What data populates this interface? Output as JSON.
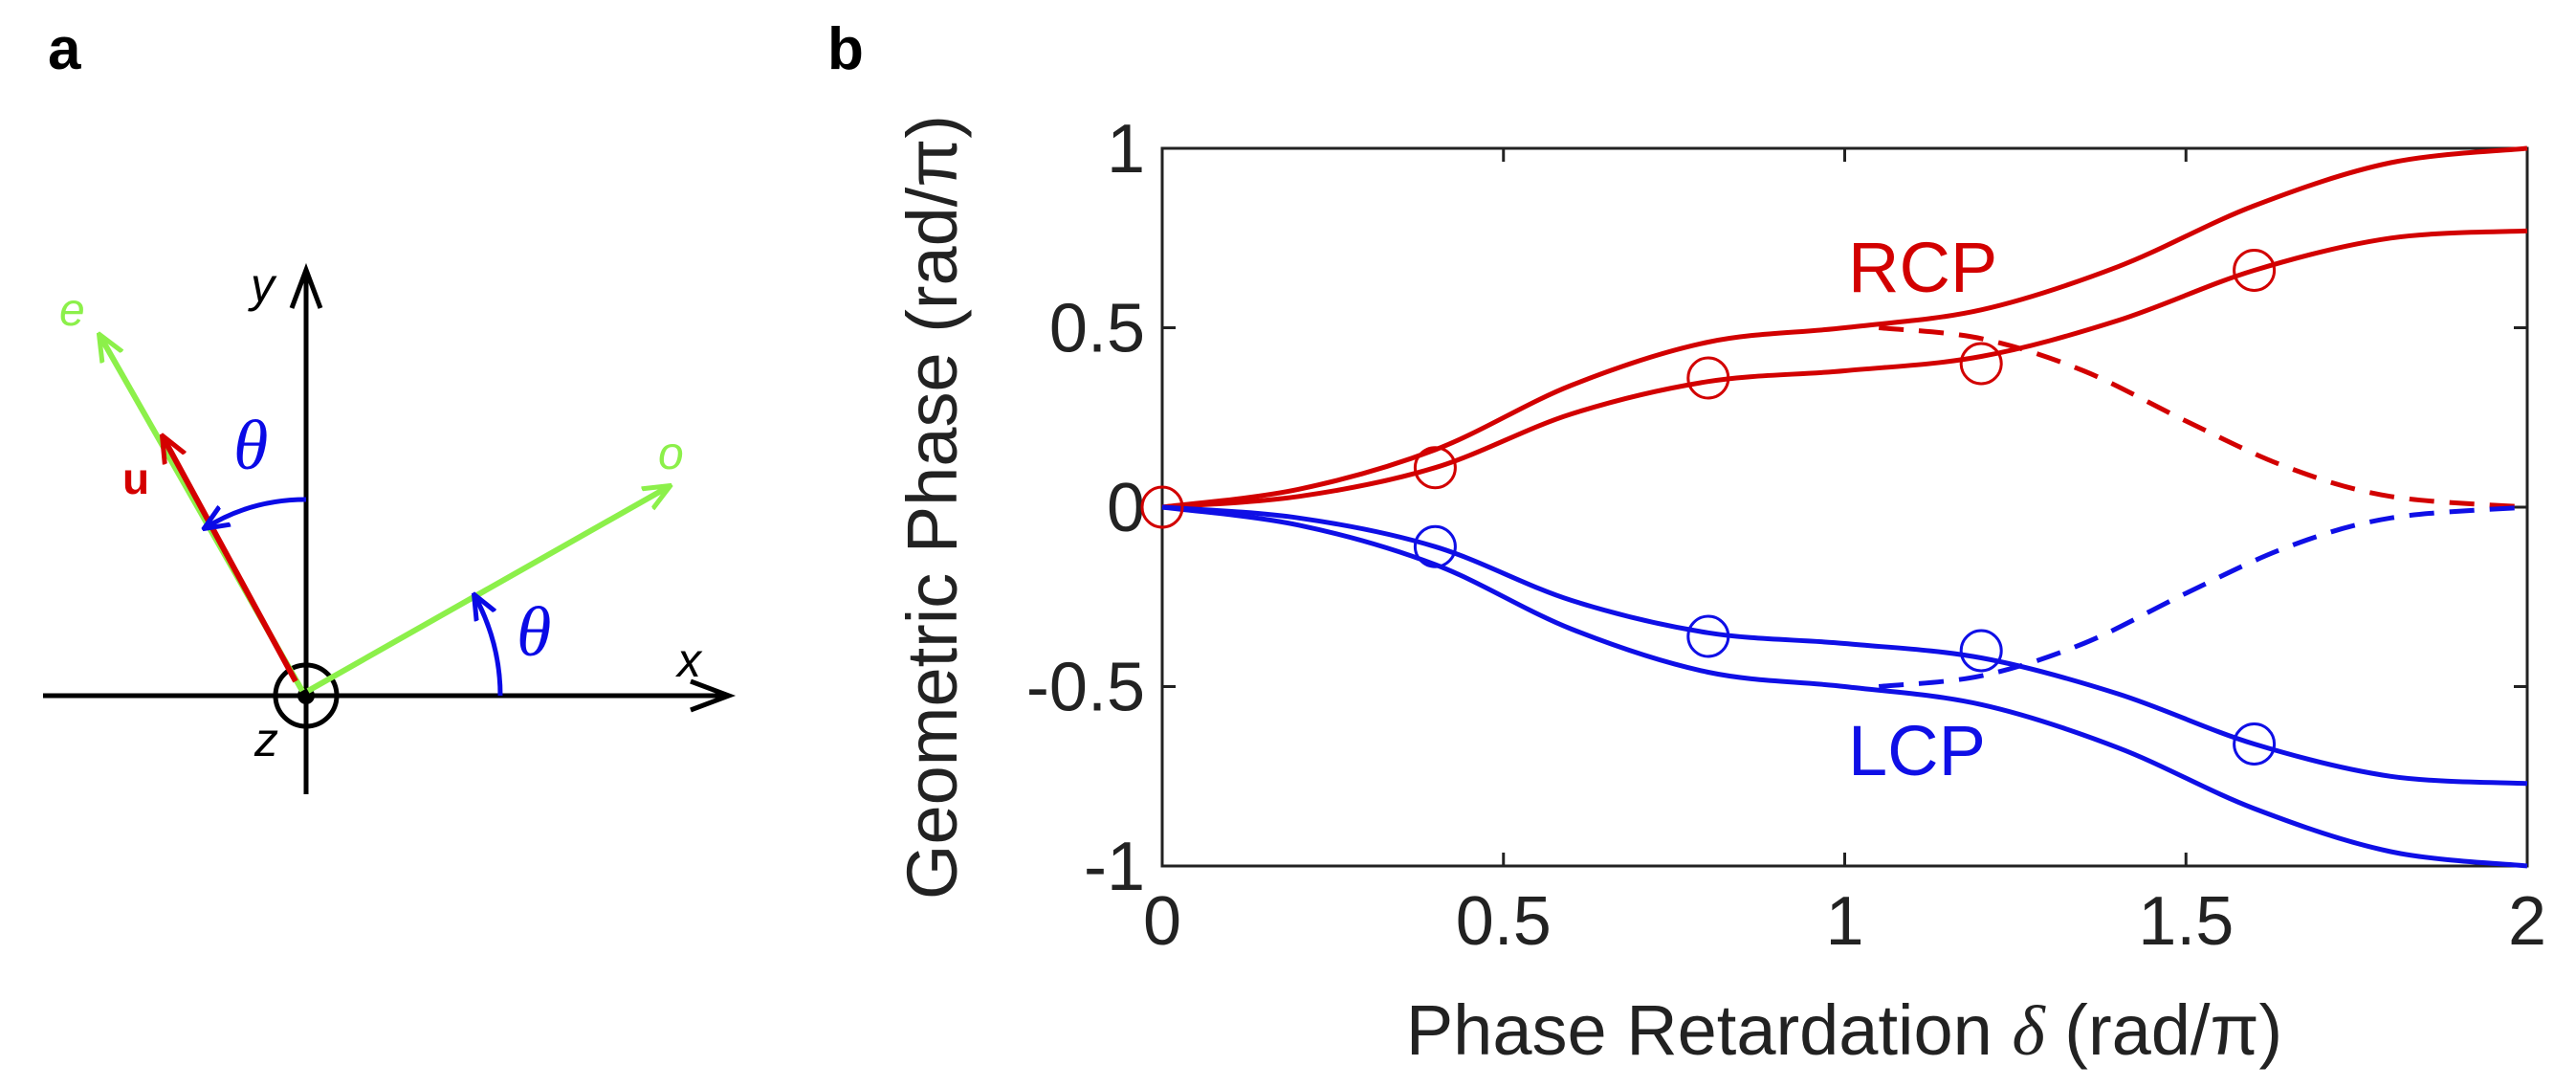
{
  "panel_a": {
    "label": "a",
    "axis_x": "x",
    "axis_y": "y",
    "axis_z": "z",
    "vec_e": "e",
    "vec_o": "o",
    "vec_u": "u",
    "angle_top": "θ",
    "angle_right": "θ",
    "colors": {
      "green": "#8cf04a",
      "red": "#d40000",
      "blue": "#0a0ae6",
      "black": "#000000"
    }
  },
  "panel_b": {
    "label": "b",
    "annotation_rcp": "RCP",
    "annotation_lcp": "LCP"
  },
  "chart_data": {
    "type": "line",
    "ylabel": "Geometric Phase (rad/π)",
    "xlabel_prefix": "Phase Retardation ",
    "xlabel_symbol": "δ",
    "xlabel_suffix": " (rad/π)",
    "xlim": [
      0,
      2
    ],
    "ylim": [
      -1,
      1
    ],
    "xticks": [
      0,
      0.5,
      1,
      1.5,
      2
    ],
    "xtick_labels": [
      "0",
      "0.5",
      "1",
      "1.5",
      "2"
    ],
    "yticks": [
      1,
      0.5,
      0,
      -0.5,
      -1
    ],
    "ytick_labels": [
      "1",
      "0.5",
      "0",
      "-0.5",
      "-1"
    ],
    "grid": false,
    "colors": {
      "rcp": "#d20000",
      "lcp": "#0f0fe6"
    },
    "series": [
      {
        "name": "RCP outer",
        "style": "solid",
        "color": "rcp",
        "x": [
          0,
          0.2,
          0.4,
          0.6,
          0.8,
          1.0,
          1.2,
          1.4,
          1.6,
          1.8,
          2.0
        ],
        "y": [
          0,
          0.05,
          0.16,
          0.34,
          0.46,
          0.5,
          0.55,
          0.67,
          0.84,
          0.96,
          1.0
        ]
      },
      {
        "name": "RCP inner",
        "style": "solid",
        "color": "rcp",
        "x": [
          0,
          0.2,
          0.4,
          0.6,
          0.8,
          1.0,
          1.2,
          1.4,
          1.6,
          1.8,
          2.0
        ],
        "y": [
          0,
          0.03,
          0.11,
          0.26,
          0.35,
          0.38,
          0.42,
          0.52,
          0.66,
          0.75,
          0.77
        ]
      },
      {
        "name": "RCP dashed",
        "style": "dashed",
        "color": "rcp",
        "x": [
          1.05,
          1.2,
          1.35,
          1.5,
          1.65,
          1.8,
          2.0
        ],
        "y": [
          0.5,
          0.47,
          0.38,
          0.24,
          0.11,
          0.03,
          0.0
        ]
      },
      {
        "name": "LCP outer",
        "style": "solid",
        "color": "lcp",
        "x": [
          0,
          0.2,
          0.4,
          0.6,
          0.8,
          1.0,
          1.2,
          1.4,
          1.6,
          1.8,
          2.0
        ],
        "y": [
          0,
          -0.05,
          -0.16,
          -0.34,
          -0.46,
          -0.5,
          -0.55,
          -0.67,
          -0.84,
          -0.96,
          -1.0
        ]
      },
      {
        "name": "LCP inner",
        "style": "solid",
        "color": "lcp",
        "x": [
          0,
          0.2,
          0.4,
          0.6,
          0.8,
          1.0,
          1.2,
          1.4,
          1.6,
          1.8,
          2.0
        ],
        "y": [
          0,
          -0.03,
          -0.11,
          -0.26,
          -0.35,
          -0.38,
          -0.42,
          -0.52,
          -0.66,
          -0.75,
          -0.77
        ]
      },
      {
        "name": "LCP dashed",
        "style": "dashed",
        "color": "lcp",
        "x": [
          1.05,
          1.2,
          1.35,
          1.5,
          1.65,
          1.8,
          2.0
        ],
        "y": [
          -0.5,
          -0.47,
          -0.38,
          -0.24,
          -0.11,
          -0.03,
          0.0
        ]
      },
      {
        "name": "RCP markers",
        "style": "markers",
        "color": "rcp",
        "x": [
          0,
          0.4,
          0.8,
          1.2,
          1.6
        ],
        "y": [
          0,
          0.11,
          0.36,
          0.4,
          0.66
        ]
      },
      {
        "name": "LCP markers",
        "style": "markers",
        "color": "lcp",
        "x": [
          0.4,
          0.8,
          1.2,
          1.6
        ],
        "y": [
          -0.11,
          -0.36,
          -0.4,
          -0.66
        ]
      }
    ]
  }
}
